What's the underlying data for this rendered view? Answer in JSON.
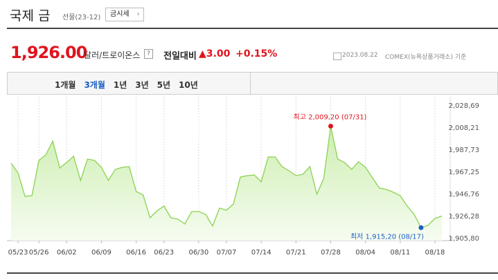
{
  "header": {
    "title": "국제 금",
    "subtitle": "선물(23-12)",
    "button": "금시세"
  },
  "price": {
    "value": "1,926.00",
    "unit": "달러/트로이온스",
    "help": "?",
    "change_label": "전일대비",
    "change": "3.00",
    "change_pct": "+0.15%",
    "date": "2023.08.22",
    "source": "COMEX(뉴욕상품거래소) 기준"
  },
  "tabs": {
    "items": [
      "1개월",
      "3개월",
      "1년",
      "3년",
      "5년",
      "10년"
    ],
    "selected": 1
  },
  "chart_data": {
    "type": "line",
    "color": "#8ad24f",
    "fill": "#d8f3c2",
    "grid": true,
    "categories": [
      null,
      "05/23",
      null,
      null,
      "05/26",
      null,
      null,
      null,
      "06/02",
      null,
      null,
      null,
      null,
      "06/09",
      null,
      null,
      null,
      null,
      "06/16",
      null,
      null,
      null,
      "06/23",
      null,
      null,
      null,
      null,
      "06/30",
      null,
      null,
      null,
      "07/07",
      null,
      null,
      null,
      null,
      "07/14",
      null,
      null,
      null,
      null,
      "07/21",
      null,
      null,
      null,
      null,
      "07/28",
      null,
      null,
      null,
      null,
      "08/04",
      null,
      null,
      null,
      null,
      "08/11",
      null,
      null,
      null,
      null,
      "08/18",
      null
    ],
    "values": [
      1974.93,
      1965.97,
      1944.21,
      1944.85,
      1977.49,
      1982.61,
      1995.41,
      1970.45,
      1975.57,
      1981.33,
      1958.93,
      1978.77,
      1977.49,
      1971.09,
      1958.93,
      1969.17,
      1971.09,
      1971.73,
      1948.69,
      1945.49,
      1924.37,
      1930.77,
      1935.25,
      1924.37,
      1923.09,
      1918.61,
      1930.13,
      1930.13,
      1927.57,
      1916.69,
      1933.33,
      1931.41,
      1937.17,
      1962.13,
      1963.41,
      1964.05,
      1957.65,
      1980.69,
      1980.69,
      1971.73,
      1967.89,
      1963.41,
      1964.69,
      1971.73,
      1946.13,
      1960.85,
      2009.2,
      1978.77,
      1975.57,
      1969.17,
      1976.21,
      1971.09,
      1961.49,
      1951.89,
      1950.61,
      1948.05,
      1944.85,
      1935.25,
      1927.57,
      1915.2,
      1917.33,
      1923.73,
      1926.0
    ],
    "ylim": [
      1905.8,
      2028.69
    ],
    "yticks": [
      {
        "value": 1905.8,
        "label": "1,905,80"
      },
      {
        "value": 1926.28,
        "label": "1,926,28"
      },
      {
        "value": 1946.76,
        "label": "1,946,76"
      },
      {
        "value": 1967.25,
        "label": "1,967,25"
      },
      {
        "value": 1987.73,
        "label": "1,987,73"
      },
      {
        "value": 2008.21,
        "label": "2,008,21"
      },
      {
        "value": 2028.69,
        "label": "2,028,69"
      }
    ],
    "annotations": [
      {
        "text": "최고 2,009,20 (07/31)",
        "color": "#e0141e"
      },
      {
        "text": "최저 1,915,20 (08/17)",
        "color": "#1c5fc4"
      }
    ]
  }
}
